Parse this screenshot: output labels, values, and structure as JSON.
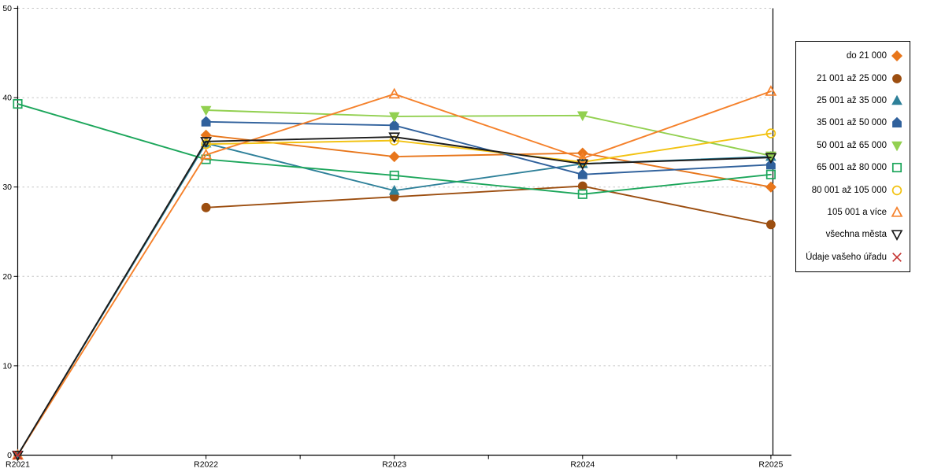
{
  "chart_data": {
    "type": "line",
    "title": "",
    "xlabel": "",
    "ylabel": "",
    "x_categories": [
      "R2021",
      "R2022",
      "R2023",
      "R2024",
      "R2025"
    ],
    "ylim": [
      0,
      50
    ],
    "yticks": [
      0,
      10,
      20,
      30,
      40,
      50
    ],
    "grid": "horizontal-dashed",
    "legend_position": "right",
    "series": [
      {
        "name": "do 21 000",
        "marker": "diamond",
        "marker_fill": "filled",
        "color": "#E8761B",
        "values": [
          null,
          35.8,
          33.4,
          33.8,
          30.0
        ]
      },
      {
        "name": "21 001 až 25 000",
        "marker": "circle",
        "marker_fill": "filled",
        "color": "#9C4E10",
        "values": [
          null,
          27.7,
          28.9,
          30.1,
          25.8
        ]
      },
      {
        "name": "25 001 až 35 000",
        "marker": "triangle-up",
        "marker_fill": "filled",
        "color": "#2E8099",
        "values": [
          0,
          34.9,
          29.6,
          32.6,
          33.4
        ]
      },
      {
        "name": "35 001 až 50 000",
        "marker": "pentagon",
        "marker_fill": "filled",
        "color": "#30619C",
        "values": [
          null,
          37.3,
          36.9,
          31.4,
          32.5
        ]
      },
      {
        "name": "50 001 až 65 000",
        "marker": "triangle-down",
        "marker_fill": "filled",
        "color": "#92D050",
        "values": [
          null,
          38.6,
          37.9,
          38.0,
          33.5
        ]
      },
      {
        "name": "65 001 až 80 000",
        "marker": "square",
        "marker_fill": "open",
        "color": "#1CA65B",
        "values": [
          39.3,
          33.1,
          31.3,
          29.2,
          31.4
        ]
      },
      {
        "name": "80 001 až 105 000",
        "marker": "circle",
        "marker_fill": "open",
        "color": "#F2C211",
        "values": [
          null,
          34.8,
          35.2,
          32.8,
          36.0
        ]
      },
      {
        "name": "105 001 a více",
        "marker": "triangle-up",
        "marker_fill": "open",
        "color": "#F5812B",
        "values": [
          0,
          33.6,
          40.4,
          33.2,
          40.7
        ]
      },
      {
        "name": "všechna města",
        "marker": "triangle-down",
        "marker_fill": "open",
        "color": "#1A1A1A",
        "values": [
          0,
          35.1,
          35.6,
          32.6,
          33.3
        ]
      },
      {
        "name": "Údaje vašeho úřadu",
        "marker": "x",
        "marker_fill": "open",
        "color": "#C43230",
        "values": [
          0,
          null,
          null,
          null,
          null
        ]
      }
    ]
  }
}
